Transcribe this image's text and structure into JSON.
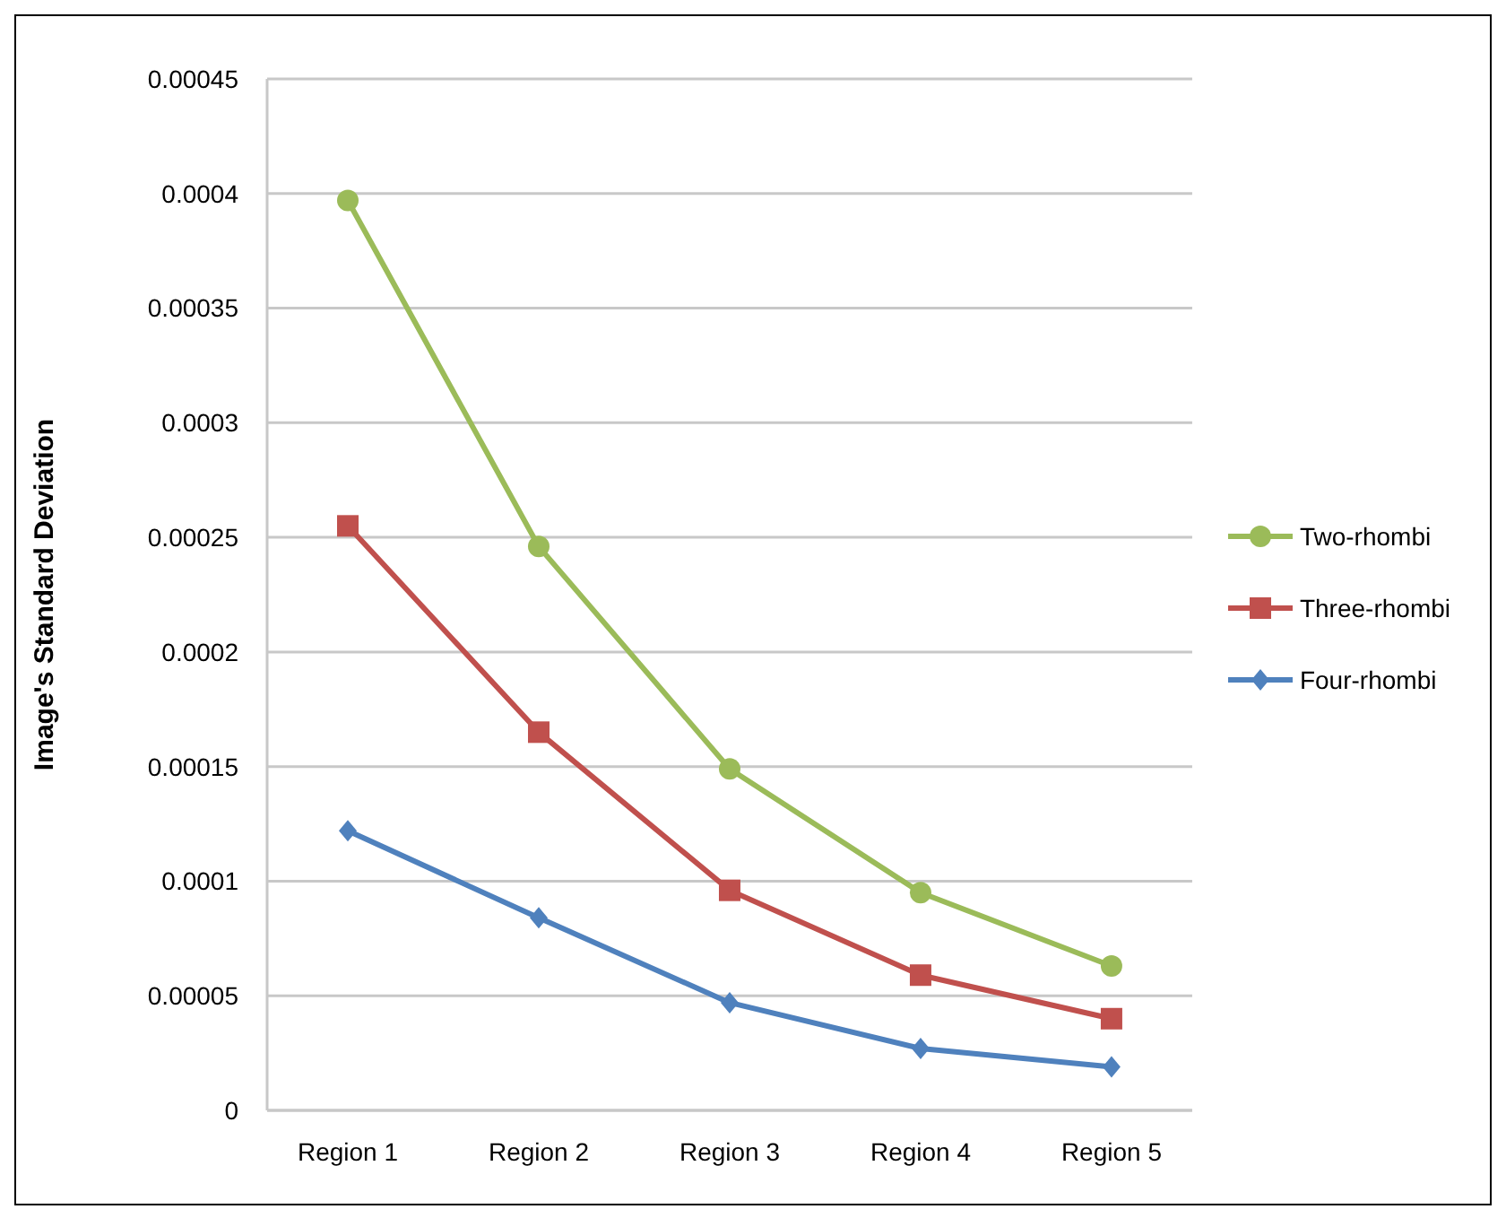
{
  "chart_data": {
    "type": "line",
    "ylabel": "Image's Standard Deviation",
    "categories": [
      "Region 1",
      "Region 2",
      "Region 3",
      "Region 4",
      "Region 5"
    ],
    "series": [
      {
        "name": "Two-rhombi",
        "color": "#9bbb59",
        "marker": "circle",
        "values": [
          0.000397,
          0.000246,
          0.000149,
          9.5e-05,
          6.3e-05
        ]
      },
      {
        "name": "Three-rhombi",
        "color": "#c0504d",
        "marker": "square",
        "values": [
          0.000255,
          0.000165,
          9.6e-05,
          5.9e-05,
          4e-05
        ]
      },
      {
        "name": "Four-rhombi",
        "color": "#4f81bd",
        "marker": "diamond",
        "values": [
          0.000122,
          8.4e-05,
          4.7e-05,
          2.7e-05,
          1.9e-05
        ]
      }
    ],
    "ylim": [
      0,
      0.00045
    ],
    "yticks": [
      0,
      {
        "value": 5e-05,
        "label": "0.00005"
      },
      0.0001,
      0.00015,
      0.0002,
      0.00025,
      0.0003,
      0.00035,
      0.0004,
      0.00045
    ],
    "grid": "y",
    "legend": "right"
  }
}
